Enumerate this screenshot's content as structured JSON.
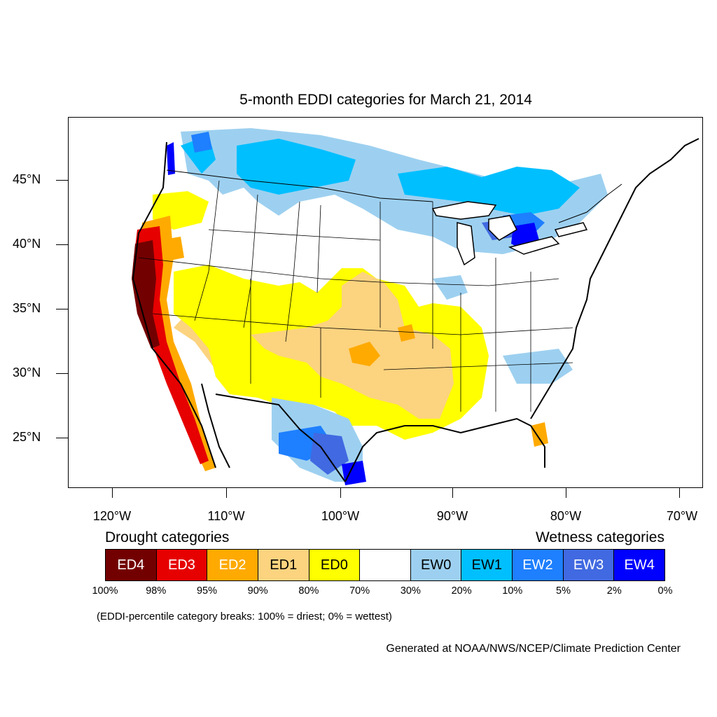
{
  "title": "5-month EDDI categories for March 21, 2014",
  "y_axis": {
    "labels": [
      "45°N",
      "40°N",
      "35°N",
      "30°N",
      "25°N"
    ]
  },
  "x_axis": {
    "labels": [
      "120°W",
      "110°W",
      "100°W",
      "90°W",
      "80°W",
      "70°W"
    ]
  },
  "legend": {
    "drought_label": "Drought categories",
    "wetness_label": "Wetness categories",
    "categories": [
      {
        "label": "ED4",
        "color": "#730000",
        "text_color": "#ffffff"
      },
      {
        "label": "ED3",
        "color": "#e60000",
        "text_color": "#ffffff"
      },
      {
        "label": "ED2",
        "color": "#ffaa00",
        "text_color": "#ffffff"
      },
      {
        "label": "ED1",
        "color": "#fcd37f",
        "text_color": "#000000"
      },
      {
        "label": "ED0",
        "color": "#ffff00",
        "text_color": "#000000"
      },
      {
        "label": "",
        "color": "#ffffff",
        "text_color": "#000000"
      },
      {
        "label": "EW0",
        "color": "#9dd0f0",
        "text_color": "#000000"
      },
      {
        "label": "EW1",
        "color": "#00bfff",
        "text_color": "#000000"
      },
      {
        "label": "EW2",
        "color": "#1e7fff",
        "text_color": "#ffffff"
      },
      {
        "label": "EW3",
        "color": "#4169e1",
        "text_color": "#ffffff"
      },
      {
        "label": "EW4",
        "color": "#0000ff",
        "text_color": "#ffffff"
      }
    ],
    "breaks": [
      "100%",
      "98%",
      "95%",
      "90%",
      "80%",
      "70%",
      "30%",
      "20%",
      "10%",
      "5%",
      "2%",
      "0%"
    ]
  },
  "note": "(EDDI-percentile category breaks: 100% = driest; 0% = wettest)",
  "credit": "Generated at NOAA/NWS/NCEP/Climate Prediction Center"
}
